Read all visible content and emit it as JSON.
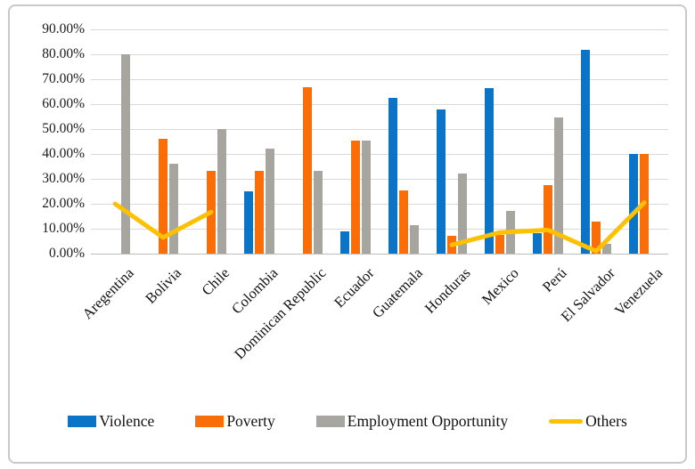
{
  "figure": {
    "background": "#ffffff",
    "border_color": "#c9c9c9"
  },
  "chart_data": {
    "type": "bar",
    "title": "",
    "xlabel": "",
    "ylabel": "",
    "grid": true,
    "legend_position": "bottom",
    "y_axis": {
      "min": 0,
      "max": 90,
      "step": 10,
      "tick_labels": [
        "90.00%",
        "80.00%",
        "70.00%",
        "60.00%",
        "50.00%",
        "40.00%",
        "30.00%",
        "20.00%",
        "10.00%",
        "0.00%"
      ]
    },
    "categories": [
      "Aregentina",
      "Bolivia",
      "Chile",
      "Colombia",
      "Dominican Republic",
      "Ecuador",
      "Guatemala",
      "Honduras",
      "Mexico",
      "Perú",
      "El Salvador",
      "Venezuela"
    ],
    "series": [
      {
        "name": "Violence",
        "type": "bar",
        "color": "#0b74c7",
        "values": [
          null,
          null,
          null,
          25,
          null,
          9.1,
          62.5,
          58,
          66.5,
          8.2,
          81.8,
          40
        ]
      },
      {
        "name": "Poverty",
        "type": "bar",
        "color": "#fa6e0a",
        "values": [
          null,
          46,
          33.3,
          33.3,
          66.7,
          45.5,
          25.5,
          7,
          7.5,
          27.5,
          13,
          40
        ]
      },
      {
        "name": "Employment Opportunity",
        "type": "bar",
        "color": "#a7a5a0",
        "values": [
          80,
          36,
          50,
          42,
          33.3,
          45.5,
          11.5,
          32,
          17,
          54.5,
          4,
          null
        ]
      },
      {
        "name": "Others",
        "type": "line",
        "color": "#ffc000",
        "values": [
          20,
          6.5,
          16.7,
          null,
          null,
          null,
          null,
          3.5,
          8.5,
          9.5,
          1,
          20.5
        ]
      }
    ]
  }
}
